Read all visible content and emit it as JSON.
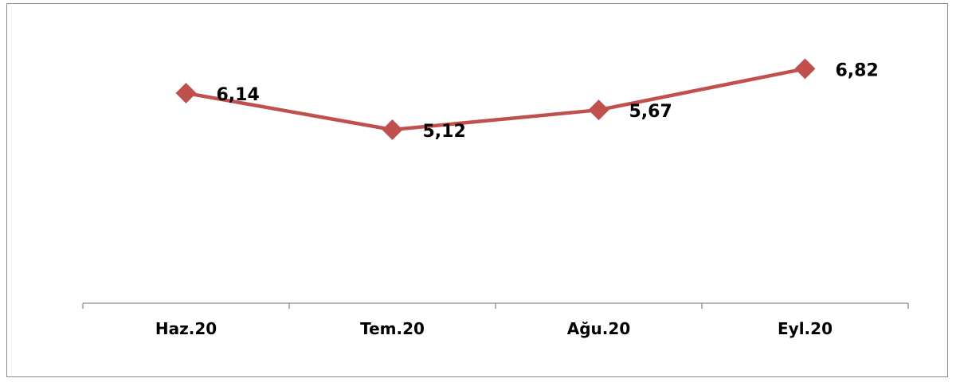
{
  "chart_data": {
    "type": "line",
    "categories": [
      "Haz.20",
      "Tem.20",
      "Ağu.20",
      "Eyl.20"
    ],
    "series": [
      {
        "values": [
          6.14,
          5.12,
          5.67,
          6.82
        ],
        "color": "#c0504d"
      }
    ],
    "data_labels": [
      "6,14",
      "5,12",
      "5,67",
      "6,82"
    ],
    "marker": "diamond",
    "grid": false,
    "legend": "none"
  }
}
